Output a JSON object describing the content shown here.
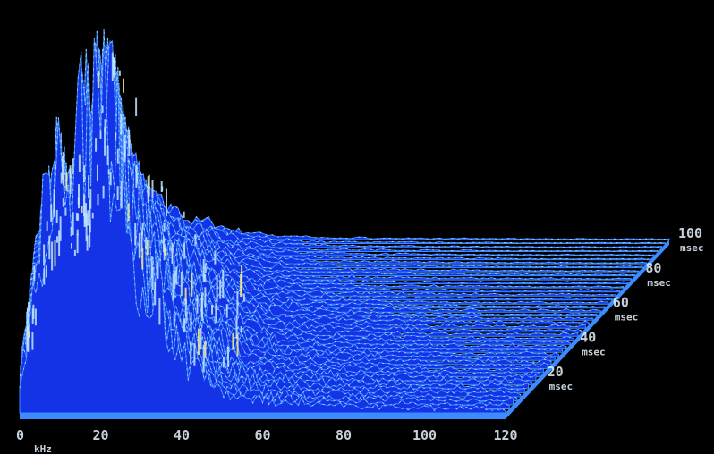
{
  "chart_data": {
    "type": "waterfall-spectrogram",
    "title": "",
    "x_ticks": [
      "0",
      "20",
      "40",
      "60",
      "80",
      "100",
      "120"
    ],
    "x_unit": "kHz",
    "depth_ticks": [
      {
        "value": "20",
        "unit": "msec"
      },
      {
        "value": "40",
        "unit": "msec"
      },
      {
        "value": "60",
        "unit": "msec"
      },
      {
        "value": "80",
        "unit": "msec"
      },
      {
        "value": "100",
        "unit": "msec"
      }
    ],
    "x_range": [
      0,
      120
    ],
    "n_slices": 44,
    "envelope": {
      "x": [
        0,
        3,
        6,
        9,
        12,
        15,
        18,
        21,
        24,
        27,
        30,
        33,
        36,
        39,
        42,
        45,
        50,
        55,
        60,
        70,
        80,
        100,
        120
      ],
      "amp": [
        0.12,
        0.3,
        0.62,
        0.74,
        0.6,
        0.86,
        0.96,
        1.0,
        0.82,
        0.6,
        0.42,
        0.44,
        0.28,
        0.2,
        0.14,
        0.12,
        0.09,
        0.06,
        0.05,
        0.04,
        0.03,
        0.02,
        0.02
      ]
    },
    "colors": {
      "background": "#000000",
      "surface": "#1432e6",
      "highlight": "#3c8cff",
      "speckle": "#bfe6ff",
      "peak": "#f4f08a"
    },
    "grid": false,
    "legend": "none"
  }
}
